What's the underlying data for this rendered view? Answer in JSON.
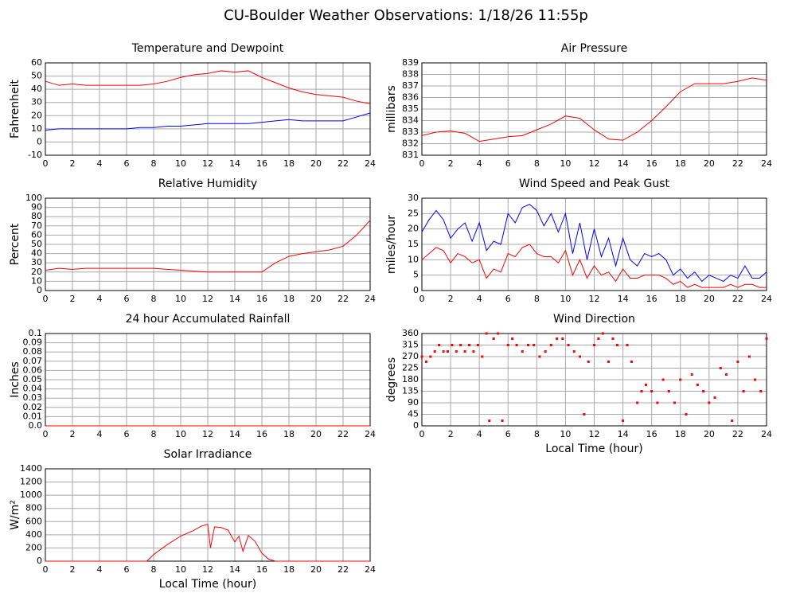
{
  "title": "CU-Boulder Weather Observations: 1/18/26 11:55p",
  "chart_data": [
    {
      "type": "line",
      "title": "Temperature and Dewpoint",
      "ylabel": "Fahrenheit",
      "x": [
        0,
        1,
        2,
        3,
        4,
        5,
        6,
        7,
        8,
        9,
        10,
        11,
        12,
        13,
        14,
        15,
        16,
        17,
        18,
        19,
        20,
        21,
        22,
        23,
        24
      ],
      "series": [
        {
          "color": "#ff0000",
          "values": [
            46,
            43,
            44,
            43,
            43,
            43,
            43,
            43,
            44,
            46,
            49,
            51,
            52,
            54,
            53,
            54,
            49,
            45,
            41,
            38,
            36,
            35,
            34,
            31,
            29
          ]
        },
        {
          "color": "#0000ff",
          "values": [
            9,
            10,
            10,
            10,
            10,
            10,
            10,
            11,
            11,
            12,
            12,
            13,
            14,
            14,
            14,
            14,
            15,
            16,
            17,
            16,
            16,
            16,
            16,
            19,
            22
          ]
        }
      ],
      "xlim": [
        0,
        24
      ],
      "xticks": [
        0,
        2,
        4,
        6,
        8,
        10,
        12,
        14,
        16,
        18,
        20,
        22,
        24
      ],
      "ylim": [
        -10,
        60
      ],
      "yticks": [
        -10,
        0,
        10,
        20,
        30,
        40,
        50,
        60
      ],
      "grid": true
    },
    {
      "type": "line",
      "title": "Air Pressure",
      "ylabel": "millibars",
      "x": [
        0,
        1,
        2,
        3,
        4,
        5,
        6,
        7,
        8,
        9,
        10,
        11,
        12,
        13,
        14,
        15,
        16,
        17,
        18,
        19,
        20,
        21,
        22,
        23,
        24
      ],
      "series": [
        {
          "color": "#ff0000",
          "values": [
            832.7,
            833.0,
            833.1,
            832.9,
            832.2,
            832.4,
            832.6,
            832.7,
            833.2,
            833.7,
            834.4,
            834.2,
            833.2,
            832.4,
            832.3,
            833.0,
            834.0,
            835.2,
            836.5,
            837.2,
            837.2,
            837.2,
            837.4,
            837.7,
            837.5
          ]
        }
      ],
      "xlim": [
        0,
        24
      ],
      "xticks": [
        0,
        2,
        4,
        6,
        8,
        10,
        12,
        14,
        16,
        18,
        20,
        22,
        24
      ],
      "ylim": [
        831,
        839
      ],
      "yticks": [
        831,
        832,
        833,
        834,
        835,
        836,
        837,
        838,
        839
      ],
      "grid": true
    },
    {
      "type": "line",
      "title": "Relative Humidity",
      "ylabel": "Percent",
      "x": [
        0,
        1,
        2,
        3,
        4,
        5,
        6,
        7,
        8,
        9,
        10,
        11,
        12,
        13,
        14,
        15,
        16,
        17,
        18,
        19,
        20,
        21,
        22,
        23,
        24
      ],
      "series": [
        {
          "color": "#ff0000",
          "values": [
            22,
            24,
            23,
            24,
            24,
            24,
            24,
            24,
            24,
            23,
            22,
            21,
            20,
            20,
            20,
            20,
            20,
            30,
            37,
            40,
            42,
            44,
            48,
            60,
            76
          ]
        }
      ],
      "xlim": [
        0,
        24
      ],
      "xticks": [
        0,
        2,
        4,
        6,
        8,
        10,
        12,
        14,
        16,
        18,
        20,
        22,
        24
      ],
      "ylim": [
        0,
        100
      ],
      "yticks": [
        0,
        10,
        20,
        30,
        40,
        50,
        60,
        70,
        80,
        90,
        100
      ],
      "grid": true
    },
    {
      "type": "line",
      "title": "Wind Speed and Peak Gust",
      "ylabel": "miles/hour",
      "x": [
        0,
        0.5,
        1,
        1.5,
        2,
        2.5,
        3,
        3.5,
        4,
        4.5,
        5,
        5.5,
        6,
        6.5,
        7,
        7.5,
        8,
        8.5,
        9,
        9.5,
        10,
        10.5,
        11,
        11.5,
        12,
        12.5,
        13,
        13.5,
        14,
        14.5,
        15,
        15.5,
        16,
        16.5,
        17,
        17.5,
        18,
        18.5,
        19,
        19.5,
        20,
        20.5,
        21,
        21.5,
        22,
        22.5,
        23,
        23.5,
        24
      ],
      "series": [
        {
          "color": "#0000ff",
          "values": [
            19,
            23,
            26,
            23,
            17,
            20,
            22,
            16,
            22,
            13,
            16,
            15,
            25,
            22,
            27,
            28,
            26,
            21,
            25,
            19,
            25,
            12,
            22,
            10,
            20,
            11,
            17,
            8,
            17,
            10,
            8,
            12,
            11,
            12,
            10,
            5,
            7,
            4,
            6,
            3,
            5,
            4,
            3,
            5,
            4,
            8,
            4,
            4,
            6
          ]
        },
        {
          "color": "#ff0000",
          "values": [
            10,
            12,
            14,
            13,
            9,
            12,
            11,
            9,
            10,
            4,
            7,
            6,
            12,
            11,
            14,
            15,
            12,
            11,
            11,
            9,
            13,
            5,
            10,
            4,
            8,
            5,
            6,
            3,
            7,
            4,
            4,
            5,
            5,
            5,
            4,
            2,
            3,
            1,
            2,
            1,
            1,
            1,
            1,
            2,
            1,
            2,
            2,
            1,
            1
          ]
        }
      ],
      "xlim": [
        0,
        24
      ],
      "xticks": [
        0,
        2,
        4,
        6,
        8,
        10,
        12,
        14,
        16,
        18,
        20,
        22,
        24
      ],
      "ylim": [
        0,
        30
      ],
      "yticks": [
        0,
        5,
        10,
        15,
        20,
        25,
        30
      ],
      "grid": true
    },
    {
      "type": "line",
      "title": "24 hour Accumulated Rainfall",
      "ylabel": "Inches",
      "x": [
        0,
        1,
        2,
        3,
        4,
        5,
        6,
        7,
        8,
        9,
        10,
        11,
        12,
        13,
        14,
        15,
        16,
        17,
        18,
        19,
        20,
        21,
        22,
        23,
        24
      ],
      "series": [
        {
          "color": "#ff0000",
          "values": [
            0,
            0,
            0,
            0,
            0,
            0,
            0,
            0,
            0,
            0,
            0,
            0,
            0,
            0,
            0,
            0,
            0,
            0,
            0,
            0,
            0,
            0,
            0,
            0,
            0
          ]
        }
      ],
      "xlim": [
        0,
        24
      ],
      "xticks": [
        0,
        2,
        4,
        6,
        8,
        10,
        12,
        14,
        16,
        18,
        20,
        22,
        24
      ],
      "ylim": [
        0,
        0.1
      ],
      "yticks": [
        {
          "value": 0,
          "label": "0.0"
        },
        0.01,
        0.02,
        0.03,
        0.04,
        0.05,
        0.06,
        0.07,
        0.08,
        0.09,
        0.1
      ],
      "grid": true
    },
    {
      "type": "scatter",
      "title": "Wind Direction",
      "ylabel": "degrees",
      "xlabel": "Local Time (hour)",
      "color": "#ff0000",
      "x": [
        0,
        0.3,
        0.6,
        0.9,
        1.2,
        1.5,
        1.8,
        2.1,
        2.4,
        2.7,
        3,
        3.3,
        3.6,
        3.9,
        4.2,
        4.5,
        4.7,
        5,
        5.3,
        5.6,
        6,
        6.3,
        6.6,
        7,
        7.4,
        7.8,
        8.2,
        8.6,
        9,
        9.4,
        9.8,
        10.2,
        10.6,
        11,
        11.3,
        11.6,
        12,
        12.3,
        12.6,
        13,
        13.3,
        13.6,
        14,
        14.3,
        14.6,
        15,
        15.3,
        15.6,
        16,
        16.4,
        16.8,
        17.2,
        17.6,
        18,
        18.4,
        18.8,
        19.2,
        19.6,
        20,
        20.4,
        20.8,
        21.2,
        21.6,
        22,
        22.4,
        22.8,
        23.2,
        23.6,
        24
      ],
      "values": [
        270,
        250,
        270,
        290,
        315,
        290,
        290,
        315,
        290,
        315,
        290,
        315,
        290,
        315,
        270,
        360,
        20,
        340,
        360,
        20,
        315,
        340,
        315,
        290,
        315,
        315,
        270,
        290,
        315,
        340,
        340,
        315,
        290,
        270,
        45,
        250,
        315,
        340,
        360,
        250,
        340,
        315,
        20,
        315,
        250,
        90,
        135,
        160,
        135,
        90,
        180,
        135,
        90,
        180,
        45,
        200,
        160,
        135,
        90,
        110,
        225,
        200,
        20,
        250,
        135,
        270,
        180,
        135,
        340
      ],
      "xlim": [
        0,
        24
      ],
      "xticks": [
        0,
        2,
        4,
        6,
        8,
        10,
        12,
        14,
        16,
        18,
        20,
        22,
        24
      ],
      "ylim": [
        0,
        360
      ],
      "yticks": [
        0,
        45,
        90,
        135,
        180,
        225,
        270,
        315,
        360
      ],
      "grid": true
    },
    {
      "type": "line",
      "title": "Solar Irradiance",
      "ylabel": "W/m²",
      "xlabel": "Local Time (hour)",
      "x": [
        0,
        2,
        4,
        6,
        7.5,
        8,
        9,
        10,
        11,
        11.5,
        12,
        12.2,
        12.5,
        13,
        13.5,
        14,
        14.3,
        14.6,
        15,
        15.5,
        16,
        16.5,
        17,
        18,
        20,
        22,
        24
      ],
      "series": [
        {
          "color": "#ff0000",
          "values": [
            0,
            0,
            0,
            0,
            0,
            100,
            250,
            380,
            470,
            530,
            560,
            200,
            520,
            510,
            470,
            290,
            380,
            150,
            390,
            300,
            120,
            30,
            0,
            0,
            0,
            0,
            0
          ]
        }
      ],
      "xlim": [
        0,
        24
      ],
      "xticks": [
        0,
        2,
        4,
        6,
        8,
        10,
        12,
        14,
        16,
        18,
        20,
        22,
        24
      ],
      "ylim": [
        0,
        1400
      ],
      "yticks": [
        0,
        200,
        400,
        600,
        800,
        1000,
        1200,
        1400
      ],
      "grid": true
    }
  ]
}
